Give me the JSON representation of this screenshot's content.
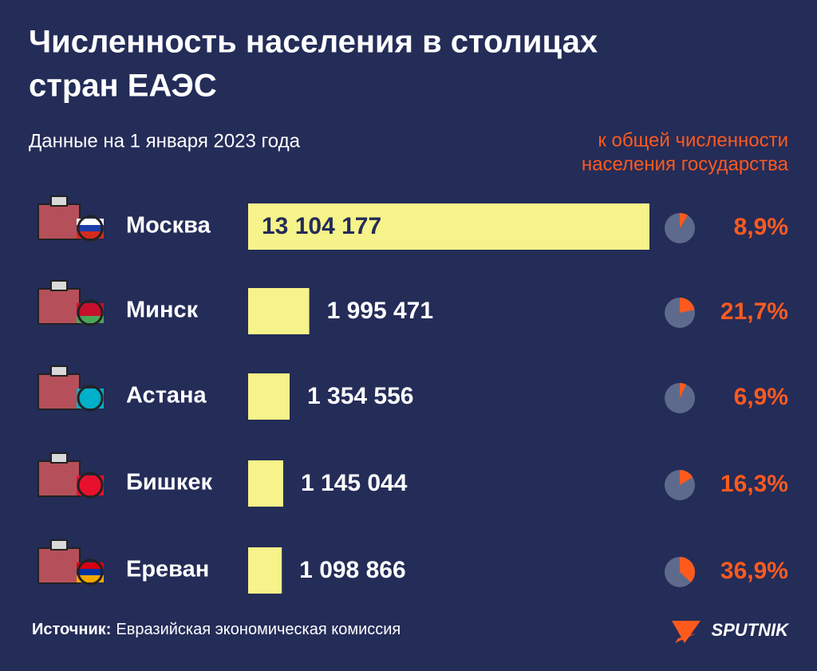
{
  "chart_data": {
    "type": "bar",
    "title": [
      "Численность населения в столицах",
      "стран ЕАЭС"
    ],
    "subtitle": "Данные на 1 января 2023 года",
    "share_title": [
      "к общей численности",
      "населения государства"
    ],
    "categories": [
      "Москва",
      "Минск",
      "Астана",
      "Бишкек",
      "Ереван"
    ],
    "values": [
      13104177,
      1995471,
      1354556,
      1145044,
      1098866
    ],
    "value_labels": [
      "13 104 177",
      "1 995 471",
      "1 354 556",
      "1 145 044",
      "1 098 866"
    ],
    "color": "#f6f38a",
    "shares": [
      8.9,
      21.7,
      6.9,
      16.3,
      36.9
    ],
    "share_labels": [
      "8,9%",
      "21,7%",
      "6,9%",
      "16,3%",
      "36,9%"
    ],
    "share_color": "#ff5a1e",
    "source_label": "Источник:",
    "source": "Евразийская экономическая комиссия",
    "brand": "SPUTNIK"
  }
}
